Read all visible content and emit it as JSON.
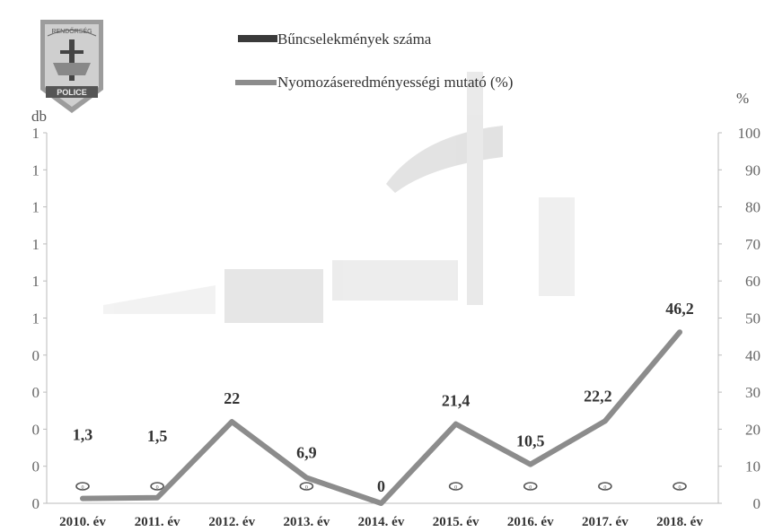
{
  "badge": {
    "top_text": "RENDŐRSÉG",
    "bottom_text": "POLICE"
  },
  "chart_data": {
    "type": "line",
    "categories": [
      "2010. év",
      "2011. év",
      "2012. év",
      "2013. év",
      "2014. év",
      "2015. év",
      "2016. év",
      "2017. év",
      "2018. év"
    ],
    "series": [
      {
        "name": "Bűncselekmények száma",
        "type": "bar",
        "values": [
          0,
          0,
          null,
          0,
          null,
          0,
          0,
          0,
          0
        ],
        "value_labels": [
          "0",
          "0",
          "",
          "0",
          "",
          "0",
          "0",
          "0",
          "0"
        ],
        "color": "#3a3a3a"
      },
      {
        "name": "Nyomozáseredményességi mutató (%)",
        "type": "line",
        "values": [
          1.3,
          1.5,
          22,
          6.9,
          0,
          21.4,
          10.5,
          22.2,
          46.2
        ],
        "value_labels": [
          "1,3",
          "1,5",
          "22",
          "6,9",
          "0",
          "21,4",
          "10,5",
          "22,2",
          "46,2"
        ],
        "color": "#8c8c8c"
      }
    ],
    "y_left": {
      "label": "db",
      "tick_labels": [
        "0",
        "0",
        "0",
        "0",
        "0",
        "1",
        "1",
        "1",
        "1",
        "1",
        "1"
      ]
    },
    "y_right": {
      "label": "%",
      "ylim": [
        0,
        100
      ],
      "ticks": [
        0,
        10,
        20,
        30,
        40,
        50,
        60,
        70,
        80,
        90,
        100
      ]
    },
    "legend_position": "top-center",
    "grid": false
  }
}
